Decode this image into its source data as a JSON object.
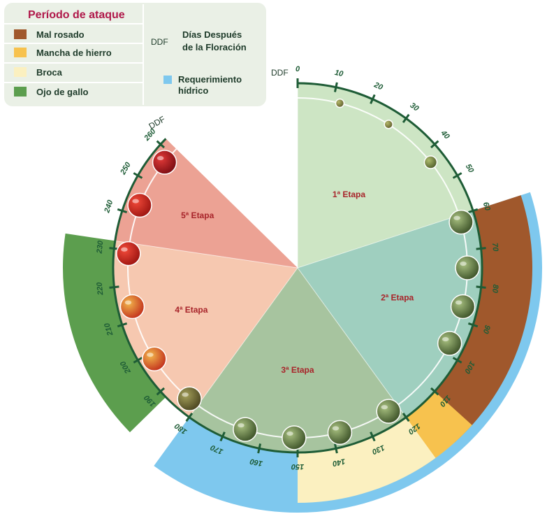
{
  "legend": {
    "title": "Período de ataque",
    "items": [
      {
        "label": "Mal rosado",
        "color": "#a0582c"
      },
      {
        "label": "Mancha de hierro",
        "color": "#f7c24e"
      },
      {
        "label": "Broca",
        "color": "#fbf0c0"
      },
      {
        "label": "Ojo de gallo",
        "color": "#5c9e4e"
      }
    ],
    "ddf_abbr": "DDF",
    "ddf_def_line1": "Días Después",
    "ddf_def_line2": "de la Floración",
    "water_label_line1": "Requerimiento",
    "water_label_line2": "hídrico",
    "water_color": "#7ec8ee"
  },
  "axis": {
    "unit": "DDF",
    "ticks": [
      "0",
      "10",
      "20",
      "30",
      "40",
      "50",
      "60",
      "70",
      "80",
      "90",
      "100",
      "110",
      "120",
      "130",
      "140",
      "150",
      "160",
      "170",
      "180",
      "190",
      "200",
      "210",
      "220",
      "230",
      "240",
      "250",
      "260"
    ],
    "ring_color": "#1e5c36"
  },
  "stages": [
    {
      "label": "1ª Etapa",
      "from": 0,
      "to": 60,
      "color": "#cde5c4"
    },
    {
      "label": "2ª Etapa",
      "from": 60,
      "to": 120,
      "color": "#9fcfbf"
    },
    {
      "label": "3ª Etapa",
      "from": 120,
      "to": 180,
      "color": "#a7c49f"
    },
    {
      "label": "4ª Etapa",
      "from": 180,
      "to": 232,
      "color": "#f6c8b0"
    },
    {
      "label": "5ª Etapa",
      "from": 232,
      "to": 262,
      "color": "#eca294"
    }
  ],
  "attack_periods": [
    {
      "name": "Mal rosado",
      "from": 60,
      "to": 115
    },
    {
      "name": "Mancha de hierro",
      "from": 110,
      "to": 125
    },
    {
      "name": "Broca",
      "from": 120,
      "to": 150
    },
    {
      "name": "Ojo de gallo",
      "from": 188,
      "to": 232
    },
    {
      "name": "Requerimiento hídrico",
      "from": 60,
      "to": 180
    }
  ],
  "fruits": [
    {
      "day": 12,
      "kind": "tiny-green"
    },
    {
      "day": 27,
      "kind": "tiny-green"
    },
    {
      "day": 43,
      "kind": "small-green"
    },
    {
      "day": 62,
      "kind": "green"
    },
    {
      "day": 75,
      "kind": "green"
    },
    {
      "day": 86,
      "kind": "green"
    },
    {
      "day": 97,
      "kind": "green"
    },
    {
      "day": 123,
      "kind": "green"
    },
    {
      "day": 138,
      "kind": "green"
    },
    {
      "day": 151,
      "kind": "green"
    },
    {
      "day": 165,
      "kind": "green"
    },
    {
      "day": 183,
      "kind": "olive"
    },
    {
      "day": 198,
      "kind": "yellow-red"
    },
    {
      "day": 214,
      "kind": "yellow-red"
    },
    {
      "day": 229,
      "kind": "red"
    },
    {
      "day": 243,
      "kind": "red"
    },
    {
      "day": 257,
      "kind": "dark-red"
    }
  ],
  "fruit_colors": {
    "tiny-green": [
      "#b4b86a",
      "#5c5a2a"
    ],
    "small-green": [
      "#aebc6e",
      "#4e5c2a"
    ],
    "green": [
      "#a8c080",
      "#3c5228"
    ],
    "olive": [
      "#a4a05a",
      "#4a4420"
    ],
    "yellow-red": [
      "#f2b64c",
      "#c2301c"
    ],
    "red": [
      "#f24a3a",
      "#9c1410"
    ],
    "dark-red": [
      "#e23a38",
      "#7a0c12"
    ]
  }
}
